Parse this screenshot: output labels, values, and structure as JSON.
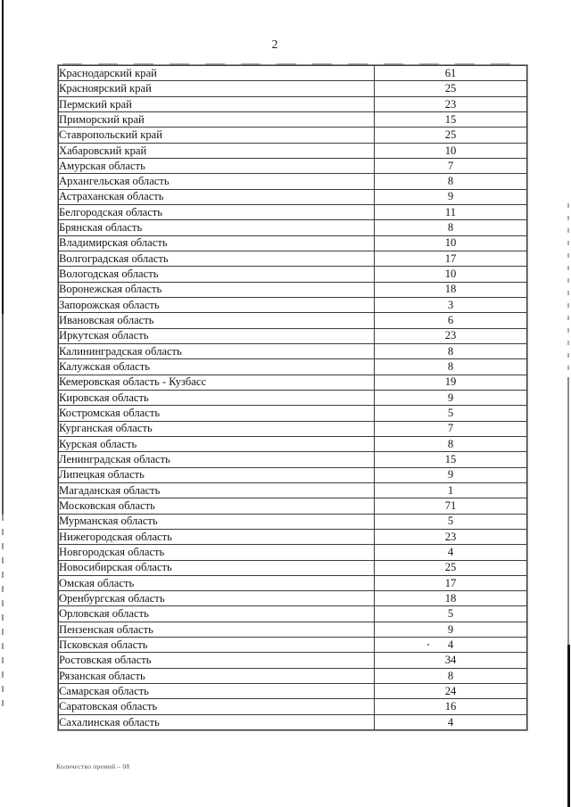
{
  "page": {
    "number": "2",
    "footer_note": "Количество премий – 08"
  },
  "table": {
    "rows": [
      {
        "region": "Краснодарский край",
        "value": "61"
      },
      {
        "region": "Красноярский край",
        "value": "25"
      },
      {
        "region": "Пермский край",
        "value": "23"
      },
      {
        "region": "Приморский край",
        "value": "15"
      },
      {
        "region": "Ставропольский край",
        "value": "25"
      },
      {
        "region": "Хабаровский край",
        "value": "10"
      },
      {
        "region": "Амурская область",
        "value": "7"
      },
      {
        "region": "Архангельская область",
        "value": "8"
      },
      {
        "region": "Астраханская область",
        "value": "9"
      },
      {
        "region": "Белгородская область",
        "value": "11"
      },
      {
        "region": "Брянская область",
        "value": "8"
      },
      {
        "region": "Владимирская область",
        "value": "10"
      },
      {
        "region": "Волгоградская область",
        "value": "17"
      },
      {
        "region": "Вологодская область",
        "value": "10"
      },
      {
        "region": "Воронежская область",
        "value": "18"
      },
      {
        "region": "Запорожская область",
        "value": "3"
      },
      {
        "region": "Ивановская область",
        "value": "6"
      },
      {
        "region": "Иркутская область",
        "value": "23"
      },
      {
        "region": "Калининградская область",
        "value": "8"
      },
      {
        "region": "Калужская область",
        "value": "8"
      },
      {
        "region": "Кемеровская область - Кузбасс",
        "value": "19"
      },
      {
        "region": "Кировская область",
        "value": "9"
      },
      {
        "region": "Костромская область",
        "value": "5"
      },
      {
        "region": "Курганская область",
        "value": "7"
      },
      {
        "region": "Курская область",
        "value": "8"
      },
      {
        "region": "Ленинградская область",
        "value": "15"
      },
      {
        "region": "Липецкая область",
        "value": "9"
      },
      {
        "region": "Магаданская область",
        "value": "1"
      },
      {
        "region": "Московская область",
        "value": "71"
      },
      {
        "region": "Мурманская область",
        "value": "5"
      },
      {
        "region": "Нижегородская область",
        "value": "23"
      },
      {
        "region": "Новгородская область",
        "value": "4"
      },
      {
        "region": "Новосибирская область",
        "value": "25"
      },
      {
        "region": "Омская область",
        "value": "17"
      },
      {
        "region": "Оренбургская область",
        "value": "18"
      },
      {
        "region": "Орловская область",
        "value": "5"
      },
      {
        "region": "Пензенская область",
        "value": "9"
      },
      {
        "region": "Псковская область",
        "value": "4"
      },
      {
        "region": "Ростовская область",
        "value": "34"
      },
      {
        "region": "Рязанская область",
        "value": "8"
      },
      {
        "region": "Самарская область",
        "value": "24"
      },
      {
        "region": "Саратовская область",
        "value": "16"
      },
      {
        "region": "Сахалинская область",
        "value": "4"
      }
    ]
  }
}
